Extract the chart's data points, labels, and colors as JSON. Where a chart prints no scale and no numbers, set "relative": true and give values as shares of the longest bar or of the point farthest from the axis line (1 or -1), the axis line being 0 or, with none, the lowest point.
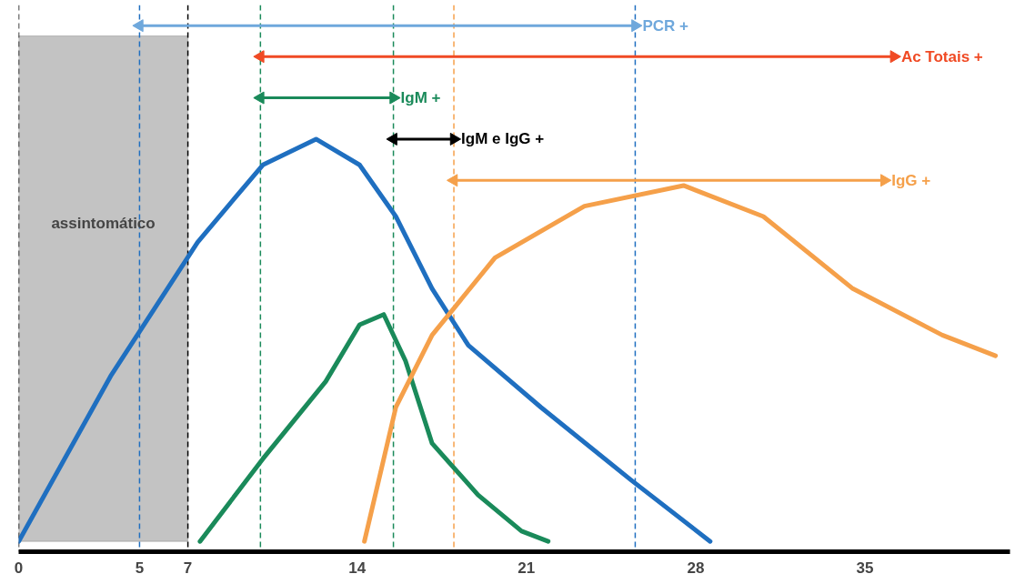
{
  "chart_data": {
    "type": "line",
    "relative": true,
    "grid": false,
    "line_style": "solid",
    "marker": "none",
    "xlim": [
      0,
      41
    ],
    "xticks": [
      0,
      5,
      7,
      14,
      21,
      28,
      35
    ],
    "series": [
      {
        "color": "#1f6fc0",
        "x": [
          0,
          3.8,
          7.4,
          10.1,
          12.3,
          14.1,
          15.6,
          17.1,
          18.6,
          21.6,
          25.3,
          28.6
        ],
        "values": [
          0,
          0.32,
          0.58,
          0.73,
          0.78,
          0.73,
          0.63,
          0.49,
          0.38,
          0.26,
          0.12,
          0
        ]
      },
      {
        "color": "#1a8a5a",
        "x": [
          7.5,
          10.1,
          12.7,
          14.1,
          15.1,
          16.0,
          17.1,
          19.0,
          20.8,
          21.9
        ],
        "values": [
          0,
          0.16,
          0.31,
          0.42,
          0.44,
          0.35,
          0.19,
          0.09,
          0.02,
          0
        ]
      },
      {
        "color": "#f5a04a",
        "x": [
          14.3,
          15.6,
          17.1,
          19.7,
          23.4,
          27.5,
          30.8,
          34.5,
          38.2,
          40.4
        ],
        "values": [
          0,
          0.26,
          0.4,
          0.55,
          0.65,
          0.69,
          0.63,
          0.49,
          0.4,
          0.36
        ]
      },
      {
        "name": "PCR +",
        "marker": "triangle",
        "color": "#6fa8dc",
        "x": [
          5,
          25.5
        ],
        "values": [
          1.0,
          1.0
        ]
      },
      {
        "name": "Ac Totais +",
        "marker": "triangle",
        "color": "#f04a24",
        "x": [
          10,
          36.2
        ],
        "values": [
          0.94,
          0.94
        ]
      },
      {
        "name": "IgM +",
        "marker": "triangle",
        "color": "#1a8a5a",
        "x": [
          10,
          15.5
        ],
        "values": [
          0.86,
          0.86
        ]
      },
      {
        "name": "IgM e IgG +",
        "marker": "triangle",
        "color": "#000000",
        "x": [
          15.5,
          18
        ],
        "values": [
          0.78,
          0.78
        ]
      },
      {
        "name": "IgG +",
        "marker": "triangle",
        "color": "#f5a04a",
        "x": [
          18,
          35.8
        ],
        "values": [
          0.7,
          0.7
        ]
      }
    ],
    "bands": [
      {
        "axis": "x",
        "from": 0,
        "to": 7,
        "label": "assintomático",
        "color": "#bdbdbd"
      }
    ],
    "ref_lines": [
      {
        "axis": "x",
        "value": 0,
        "color": "#000000",
        "line_style": "dashed"
      },
      {
        "axis": "x",
        "value": 5,
        "color": "#1f6fc0",
        "line_style": "dashed"
      },
      {
        "axis": "x",
        "value": 7,
        "color": "#000000",
        "line_style": "dashed"
      },
      {
        "axis": "x",
        "value": 10,
        "color": "#1a8a5a",
        "line_style": "dashed"
      },
      {
        "axis": "x",
        "value": 15.5,
        "color": "#1a8a5a",
        "line_style": "dashed"
      },
      {
        "axis": "x",
        "value": 18,
        "color": "#f5a04a",
        "line_style": "dashed"
      },
      {
        "axis": "x",
        "value": 25.5,
        "color": "#1f6fc0",
        "line_style": "dashed"
      }
    ]
  }
}
